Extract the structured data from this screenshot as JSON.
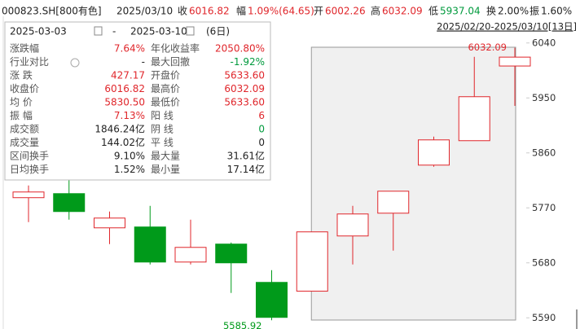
{
  "header": {
    "code": "000823.SH[800有色]",
    "date": "2025/03/10",
    "items": [
      {
        "label": "收",
        "value": "6016.82",
        "color": "#e0262b"
      },
      {
        "label": "幅",
        "value": "1.09%(64.65)",
        "color": "#e0262b"
      },
      {
        "label": "开",
        "value": "6002.26",
        "color": "#e0262b"
      },
      {
        "label": "高",
        "value": "6032.09",
        "color": "#e0262b"
      },
      {
        "label": "低",
        "value": "5937.04",
        "color": "#009a3d"
      },
      {
        "label": "换",
        "value": "2.00%",
        "color": "#222222"
      },
      {
        "label": "振",
        "value": "1.60%",
        "color": "#222222"
      }
    ],
    "range": "2025/02/20-2025/03/10[13日]"
  },
  "info_panel": {
    "start_date": "2025-03-03",
    "separator": "-",
    "end_date": "2025-03-10",
    "days": "(6日)",
    "rows": [
      {
        "label": "涨跌幅",
        "value": "7.64%",
        "color": "#e0262b",
        "label2": "年化收益率",
        "value2": "2050.80%",
        "color2": "#e0262b"
      },
      {
        "label": "行业对比",
        "value": "-",
        "color": "#222222",
        "label2": "最大回撤",
        "value2": "-1.92%",
        "color2": "#009a3d"
      },
      {
        "label": "涨 跌",
        "value": "427.17",
        "color": "#e0262b",
        "label2": "开盘价",
        "value2": "5633.60",
        "color2": "#e0262b"
      },
      {
        "label": "收盘价",
        "value": "6016.82",
        "color": "#e0262b",
        "label2": "最高价",
        "value2": "6032.09",
        "color2": "#e0262b"
      },
      {
        "label": "均 价",
        "value": "5830.50",
        "color": "#e0262b",
        "label2": "最低价",
        "value2": "5633.60",
        "color2": "#e0262b"
      },
      {
        "label": "振 幅",
        "value": "7.13%",
        "color": "#e0262b",
        "label2": "阳 线",
        "value2": "6",
        "color2": "#e0262b"
      },
      {
        "label": "成交额",
        "value": "1846.24亿",
        "color": "#222222",
        "label2": "阴 线",
        "value2": "0",
        "color2": "#009a3d"
      },
      {
        "label": "成交量",
        "value": "144.02亿",
        "color": "#222222",
        "label2": "平 线",
        "value2": "0",
        "color2": "#222222"
      },
      {
        "label": "区间换手",
        "value": "9.10%",
        "color": "#222222",
        "label2": "最大量",
        "value2": "31.61亿",
        "color2": "#222222"
      },
      {
        "label": "日均换手",
        "value": "1.52%",
        "color": "#222222",
        "label2": "最小量",
        "value2": "17.14亿",
        "color2": "#222222"
      }
    ]
  },
  "chart_data": {
    "type": "candlestick",
    "up_color": "#e0262b",
    "down_color": "#009a1a",
    "open": [
      5786.7,
      5793.3,
      5737.3,
      5738.7,
      5681.3,
      5710.7,
      5648,
      5633.6,
      5724,
      5761.3,
      5840,
      5880,
      6002.26
    ],
    "high": [
      5806.7,
      5820,
      5764,
      5773.3,
      5750.7,
      5713.3,
      5668,
      5730.7,
      5773.3,
      5797.3,
      5886.7,
      6017.3,
      6032.09
    ],
    "low": [
      5746.7,
      5750.7,
      5710.7,
      5677.3,
      5677.3,
      5630.7,
      5585.92,
      5633.6,
      5677.3,
      5700,
      5837.3,
      5880,
      5937.04
    ],
    "close": [
      5796,
      5764,
      5753.3,
      5681.3,
      5705.3,
      5680,
      5590.7,
      5730.7,
      5760,
      5797.3,
      5881.3,
      5952,
      6016.82
    ],
    "ylim": [
      5577,
      6057
    ],
    "yticks": [
      5590,
      5680,
      5770,
      5860,
      5950,
      6040
    ]
  }
}
